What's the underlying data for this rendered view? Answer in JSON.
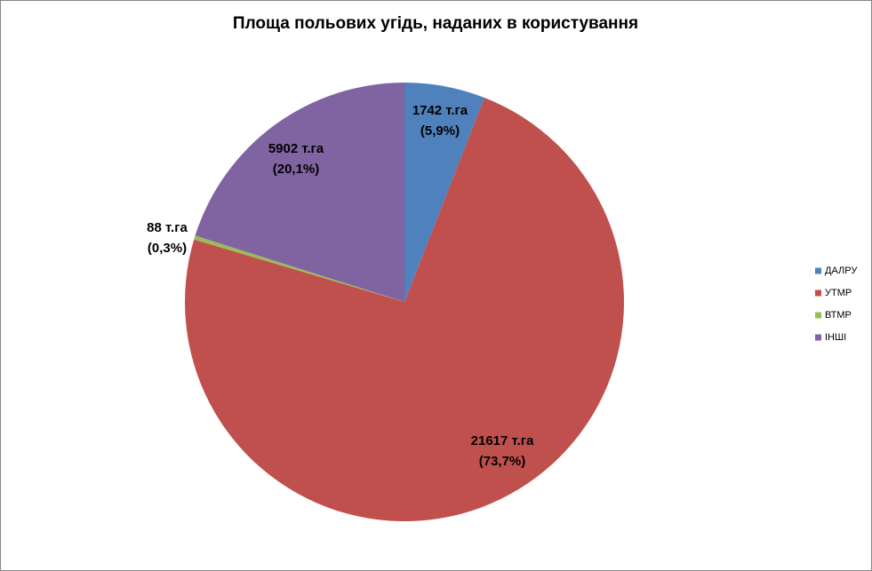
{
  "chart_data": {
    "type": "pie",
    "title": "Площа польових угідь, наданих в користування",
    "categories": [
      "ДАЛРУ",
      "УТМР",
      "ВТМР",
      "ІНШІ"
    ],
    "values": [
      1742,
      21617,
      88,
      5902
    ],
    "value_labels": [
      "1742 т.га",
      "21617 т.га",
      "88 т.га",
      "5902 т.га"
    ],
    "percent_labels": [
      "(5,9%)",
      "(73,7%)",
      "(0,3%)",
      "(20,1%)"
    ],
    "colors": [
      "#4f81bd",
      "#c0504d",
      "#9bbb59",
      "#8064a2"
    ],
    "legend": "right"
  }
}
